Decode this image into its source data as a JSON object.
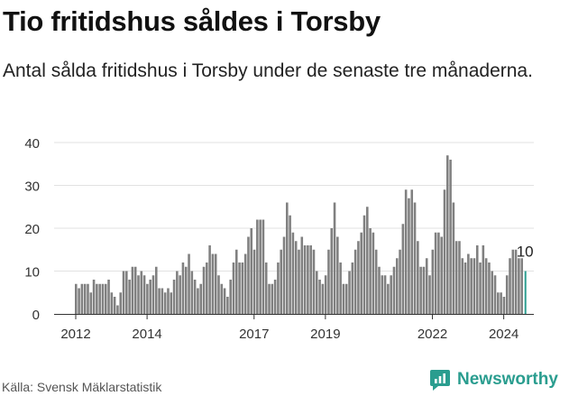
{
  "title": "Tio fritidshus såldes i Torsby",
  "subtitle": "Antal sålda fritidshus i Torsby under de senaste tre månaderna.",
  "source": "Källa: Svensk Mäklarstatistik",
  "brand": "Newsworthy",
  "colors": {
    "bar": "#808080",
    "highlight": "#2a9d8f",
    "grid": "#e2e2e2"
  },
  "chart_data": {
    "type": "bar",
    "title": "Tio fritidshus såldes i Torsby",
    "xlabel": "",
    "ylabel": "",
    "ylim": [
      0,
      40
    ],
    "yticks": [
      0,
      10,
      20,
      30,
      40
    ],
    "xticks": [
      {
        "label": "2012",
        "index": 0
      },
      {
        "label": "2014",
        "index": 24
      },
      {
        "label": "2017",
        "index": 60
      },
      {
        "label": "2019",
        "index": 84
      },
      {
        "label": "2022",
        "index": 120
      },
      {
        "label": "2024",
        "index": 144
      }
    ],
    "first_period": "2012-01",
    "frequency": "monthly",
    "grid": true,
    "highlight_last": true,
    "last_label": "10",
    "values": [
      7,
      6,
      7,
      7,
      7,
      5,
      8,
      7,
      7,
      7,
      7,
      8,
      5,
      4,
      2,
      5,
      10,
      10,
      8,
      11,
      11,
      9,
      10,
      9,
      7,
      8,
      9,
      11,
      6,
      6,
      5,
      6,
      5,
      8,
      10,
      9,
      12,
      11,
      14,
      10,
      8,
      6,
      7,
      11,
      12,
      16,
      14,
      14,
      9,
      7,
      6,
      4,
      8,
      12,
      15,
      12,
      12,
      14,
      18,
      20,
      15,
      22,
      22,
      22,
      12,
      7,
      7,
      8,
      12,
      15,
      18,
      26,
      23,
      19,
      17,
      15,
      18,
      16,
      16,
      16,
      15,
      10,
      8,
      7,
      9,
      15,
      20,
      26,
      18,
      12,
      7,
      7,
      10,
      12,
      15,
      17,
      19,
      23,
      25,
      20,
      19,
      15,
      11,
      9,
      9,
      7,
      9,
      11,
      13,
      15,
      21,
      29,
      27,
      29,
      26,
      17,
      11,
      11,
      13,
      9,
      15,
      19,
      19,
      18,
      29,
      37,
      36,
      26,
      17,
      17,
      13,
      12,
      14,
      13,
      13,
      16,
      12,
      16,
      13,
      12,
      10,
      9,
      5,
      5,
      4,
      9,
      13,
      15,
      15,
      13,
      13,
      10
    ]
  }
}
